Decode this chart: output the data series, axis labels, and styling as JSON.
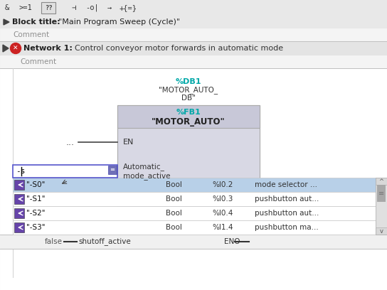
{
  "bg_color": "#f0f0f0",
  "toolbar_bg": "#e8e8e8",
  "block_title_text": "\"Main Program Sweep (Cycle)\"",
  "comment_text": "Comment",
  "network_label": "Network 1:",
  "network_desc": "Control conveyor motor forwards in automatic mode",
  "db_label": "%DB1",
  "db_name1": "\"MOTOR_AUTO_",
  "db_name2": "DB\"",
  "fb_label": "%FB1",
  "fb_name": "\"MOTOR_AUTO\"",
  "fb_box_color": "#c8c8d8",
  "fb_body_color": "#d8d8e4",
  "en_label": "EN",
  "dots_label": "...",
  "auto_label": "Automatic_",
  "mode_label": "mode_active",
  "input_text": "-s",
  "rows": [
    {
      "name": "\"-S0\"",
      "type": "Bool",
      "address": "%I0.2",
      "comment": "mode selector ...",
      "selected": true
    },
    {
      "name": "\"-S1\"",
      "type": "Bool",
      "address": "%I0.3",
      "comment": "pushbutton aut...",
      "selected": false
    },
    {
      "name": "\"-S2\"",
      "type": "Bool",
      "address": "%I0.4",
      "comment": "pushbutton aut...",
      "selected": false
    },
    {
      "name": "\"-S3\"",
      "type": "Bool",
      "address": "%I1.4",
      "comment": "pushbutton ma...",
      "selected": false
    }
  ],
  "false_label": "false",
  "shutoff_label": "shutoff_active",
  "eno_label": "ENO",
  "selected_row_color": "#b8d0e8",
  "normal_row_color": "#ffffff",
  "teal_color": "#00a8a8",
  "icon_color": "#6644aa",
  "scrollbar_bg": "#e0e0e0",
  "scrollbar_thumb": "#a8a8a8",
  "white": "#ffffff",
  "light_gray": "#f0f0f0",
  "mid_gray": "#d8d8d8",
  "dark_gray": "#505050",
  "border_color": "#b0b0b0",
  "comment_color": "#909090",
  "red_icon": "#cc2222",
  "input_border": "#5555cc"
}
